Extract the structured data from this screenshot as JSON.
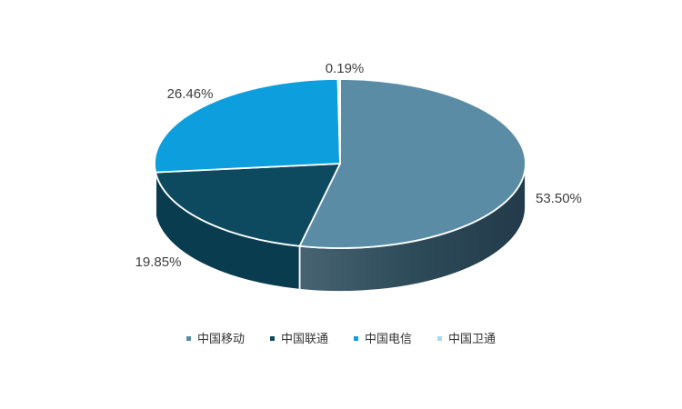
{
  "chart_data": {
    "type": "pie",
    "style": "3d",
    "title": "",
    "unit": "%",
    "categories": [
      "中国移动",
      "中国联通",
      "中国电信",
      "中国卫通"
    ],
    "values": [
      53.5,
      19.85,
      26.46,
      0.19
    ],
    "series": [
      {
        "id": "china-mobile",
        "label": "中国移动",
        "value": 53.5,
        "pct_label": "53.50%",
        "color": "#5b8ca6",
        "side_gradient": [
          "#4a6675",
          "#2e4b5a",
          "#223a49"
        ]
      },
      {
        "id": "china-unicom",
        "label": "中国联通",
        "value": 19.85,
        "pct_label": "19.85%",
        "color": "#0d4a60",
        "side_color": "#0a3c50"
      },
      {
        "id": "china-telecom",
        "label": "中国电信",
        "value": 26.46,
        "pct_label": "26.46%",
        "color": "#0d9fdd",
        "side_color": "#0a84b6"
      },
      {
        "id": "china-satcom",
        "label": "中国卫通",
        "value": 0.19,
        "pct_label": "0.19%",
        "color": "#a6d9ec",
        "side_color": "#7fc3dd"
      }
    ],
    "legend": {
      "position": "bottom"
    },
    "label_color": "#3d3d3d",
    "separator_color": "#ffffff",
    "background": "#ffffff"
  }
}
